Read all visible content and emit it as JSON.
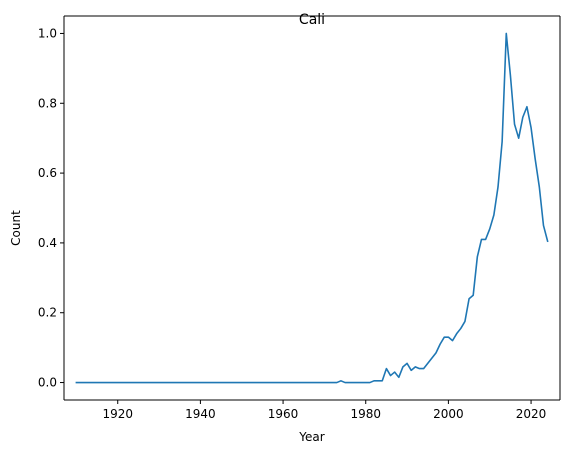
{
  "chart_data": {
    "type": "line",
    "title": "Cali",
    "xlabel": "Year",
    "ylabel": "Count",
    "xlim": [
      1907,
      2027
    ],
    "ylim": [
      -0.05,
      1.05
    ],
    "x_ticks": [
      1920,
      1940,
      1960,
      1980,
      2000,
      2020
    ],
    "y_ticks": [
      0.0,
      0.2,
      0.4,
      0.6,
      0.8,
      1.0
    ],
    "x_tick_labels": [
      "1920",
      "1940",
      "1960",
      "1980",
      "2000",
      "2020"
    ],
    "y_tick_labels": [
      "0.0",
      "0.2",
      "0.4",
      "0.6",
      "0.8",
      "1.0"
    ],
    "grid": false,
    "series": [
      {
        "color": "#1f77b4",
        "x": [
          1910,
          1972,
          1973,
          1974,
          1975,
          1976,
          1977,
          1978,
          1979,
          1980,
          1981,
          1982,
          1983,
          1984,
          1985,
          1986,
          1987,
          1988,
          1989,
          1990,
          1991,
          1992,
          1993,
          1994,
          1995,
          1996,
          1997,
          1998,
          1999,
          2000,
          2001,
          2002,
          2003,
          2004,
          2005,
          2006,
          2007,
          2008,
          2009,
          2010,
          2011,
          2012,
          2013,
          2014,
          2015,
          2016,
          2017,
          2018,
          2019,
          2020,
          2021,
          2022,
          2023,
          2024
        ],
        "y": [
          0.0,
          0.0,
          0.0,
          0.005,
          0.0,
          0.0,
          0.0,
          0.0,
          0.0,
          0.0,
          0.0,
          0.005,
          0.005,
          0.005,
          0.04,
          0.02,
          0.03,
          0.015,
          0.045,
          0.055,
          0.035,
          0.045,
          0.04,
          0.04,
          0.055,
          0.07,
          0.085,
          0.11,
          0.13,
          0.13,
          0.12,
          0.14,
          0.155,
          0.175,
          0.24,
          0.25,
          0.36,
          0.41,
          0.41,
          0.44,
          0.48,
          0.56,
          0.69,
          1.0,
          0.88,
          0.74,
          0.7,
          0.76,
          0.79,
          0.73,
          0.64,
          0.56,
          0.45,
          0.405
        ]
      }
    ]
  }
}
